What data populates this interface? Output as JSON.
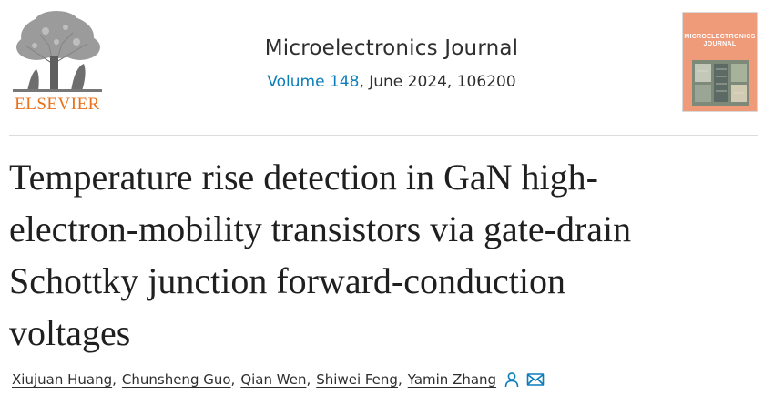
{
  "header": {
    "publisher": "ELSEVIER",
    "journal_title": "Microelectronics Journal",
    "volume_label": "Volume 148",
    "issue_rest": ", June 2024, 106200",
    "cover_title_line1": "MICROELECTRONICS",
    "cover_title_line2": "JOURNAL"
  },
  "article": {
    "title_lines": [
      "Temperature rise detection in GaN high-",
      "electron-mobility transistors via gate-drain",
      "Schottky junction forward-conduction",
      "voltages"
    ],
    "authors": [
      "Xiujuan Huang",
      "Chunsheng Guo",
      "Qian Wen",
      "Shiwei Feng",
      "Yamin Zhang"
    ],
    "separator": ",",
    "author_icons": [
      "person-icon",
      "mail-icon"
    ]
  },
  "colors": {
    "link": "#0c7dbb",
    "publisher_orange": "#e9711c",
    "cover_background": "#ef9a78"
  }
}
